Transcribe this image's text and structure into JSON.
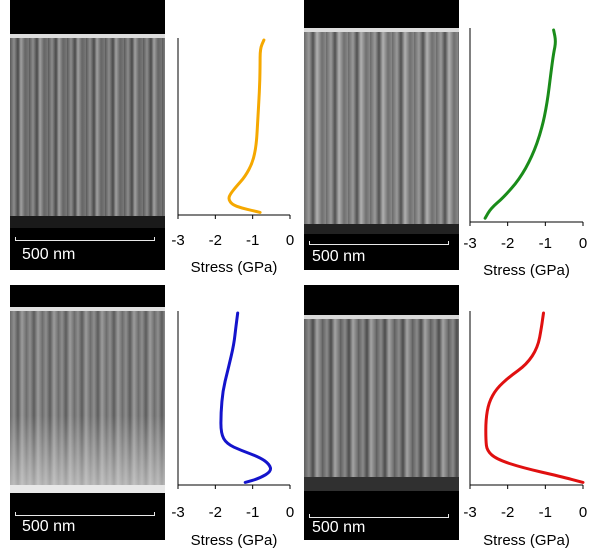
{
  "chart_data": [
    {
      "type": "line",
      "panel": "top-left",
      "xlabel": "Stress (GPa)",
      "xlim": [
        -3,
        0
      ],
      "xticks": [
        "-3",
        "-2",
        "-1",
        "0"
      ],
      "series": [
        {
          "color": "#f5a800",
          "points": [
            [
              -0.7,
              0.0
            ],
            [
              -0.8,
              0.05
            ],
            [
              -0.8,
              0.15
            ],
            [
              -0.82,
              0.3
            ],
            [
              -0.86,
              0.45
            ],
            [
              -0.9,
              0.6
            ],
            [
              -1.0,
              0.7
            ],
            [
              -1.2,
              0.78
            ],
            [
              -1.45,
              0.84
            ],
            [
              -1.6,
              0.88
            ],
            [
              -1.65,
              0.91
            ],
            [
              -1.55,
              0.94
            ],
            [
              -1.3,
              0.96
            ],
            [
              -1.0,
              0.975
            ],
            [
              -0.8,
              0.985
            ]
          ]
        }
      ],
      "scale_text": "500 nm"
    },
    {
      "type": "line",
      "panel": "top-right",
      "xlabel": "Stress (GPa)",
      "xlim": [
        -3,
        0
      ],
      "xticks": [
        "-3",
        "-2",
        "-1",
        "0"
      ],
      "series": [
        {
          "color": "#1a8c1a",
          "points": [
            [
              -0.78,
              0.0
            ],
            [
              -0.72,
              0.06
            ],
            [
              -0.78,
              0.12
            ],
            [
              -0.85,
              0.22
            ],
            [
              -0.95,
              0.38
            ],
            [
              -1.1,
              0.52
            ],
            [
              -1.35,
              0.66
            ],
            [
              -1.7,
              0.78
            ],
            [
              -2.1,
              0.87
            ],
            [
              -2.45,
              0.93
            ],
            [
              -2.6,
              0.98
            ]
          ]
        }
      ],
      "scale_text": "500 nm"
    },
    {
      "type": "line",
      "panel": "bottom-left",
      "xlabel": "Stress (GPa)",
      "xlim": [
        -3,
        0
      ],
      "xticks": [
        "-3",
        "-2",
        "-1",
        "0"
      ],
      "series": [
        {
          "color": "#1414cc",
          "points": [
            [
              -1.4,
              0.0
            ],
            [
              -1.45,
              0.08
            ],
            [
              -1.5,
              0.18
            ],
            [
              -1.65,
              0.32
            ],
            [
              -1.8,
              0.45
            ],
            [
              -1.85,
              0.58
            ],
            [
              -1.85,
              0.7
            ],
            [
              -1.7,
              0.76
            ],
            [
              -1.3,
              0.8
            ],
            [
              -0.8,
              0.84
            ],
            [
              -0.55,
              0.88
            ],
            [
              -0.5,
              0.92
            ],
            [
              -0.8,
              0.96
            ],
            [
              -1.2,
              0.985
            ]
          ]
        }
      ],
      "scale_text": "500 nm"
    },
    {
      "type": "line",
      "panel": "bottom-right",
      "xlabel": "Stress (GPa)",
      "xlim": [
        -3,
        0
      ],
      "xticks": [
        "-3",
        "-2",
        "-1",
        "0"
      ],
      "series": [
        {
          "color": "#e01010",
          "points": [
            [
              -1.05,
              0.0
            ],
            [
              -1.1,
              0.08
            ],
            [
              -1.2,
              0.2
            ],
            [
              -1.5,
              0.3
            ],
            [
              -1.95,
              0.37
            ],
            [
              -2.3,
              0.44
            ],
            [
              -2.5,
              0.52
            ],
            [
              -2.58,
              0.62
            ],
            [
              -2.58,
              0.74
            ],
            [
              -2.55,
              0.8
            ],
            [
              -2.3,
              0.85
            ],
            [
              -1.6,
              0.9
            ],
            [
              -0.6,
              0.95
            ],
            [
              0.0,
              0.985
            ]
          ]
        }
      ],
      "scale_text": "500 nm"
    }
  ]
}
